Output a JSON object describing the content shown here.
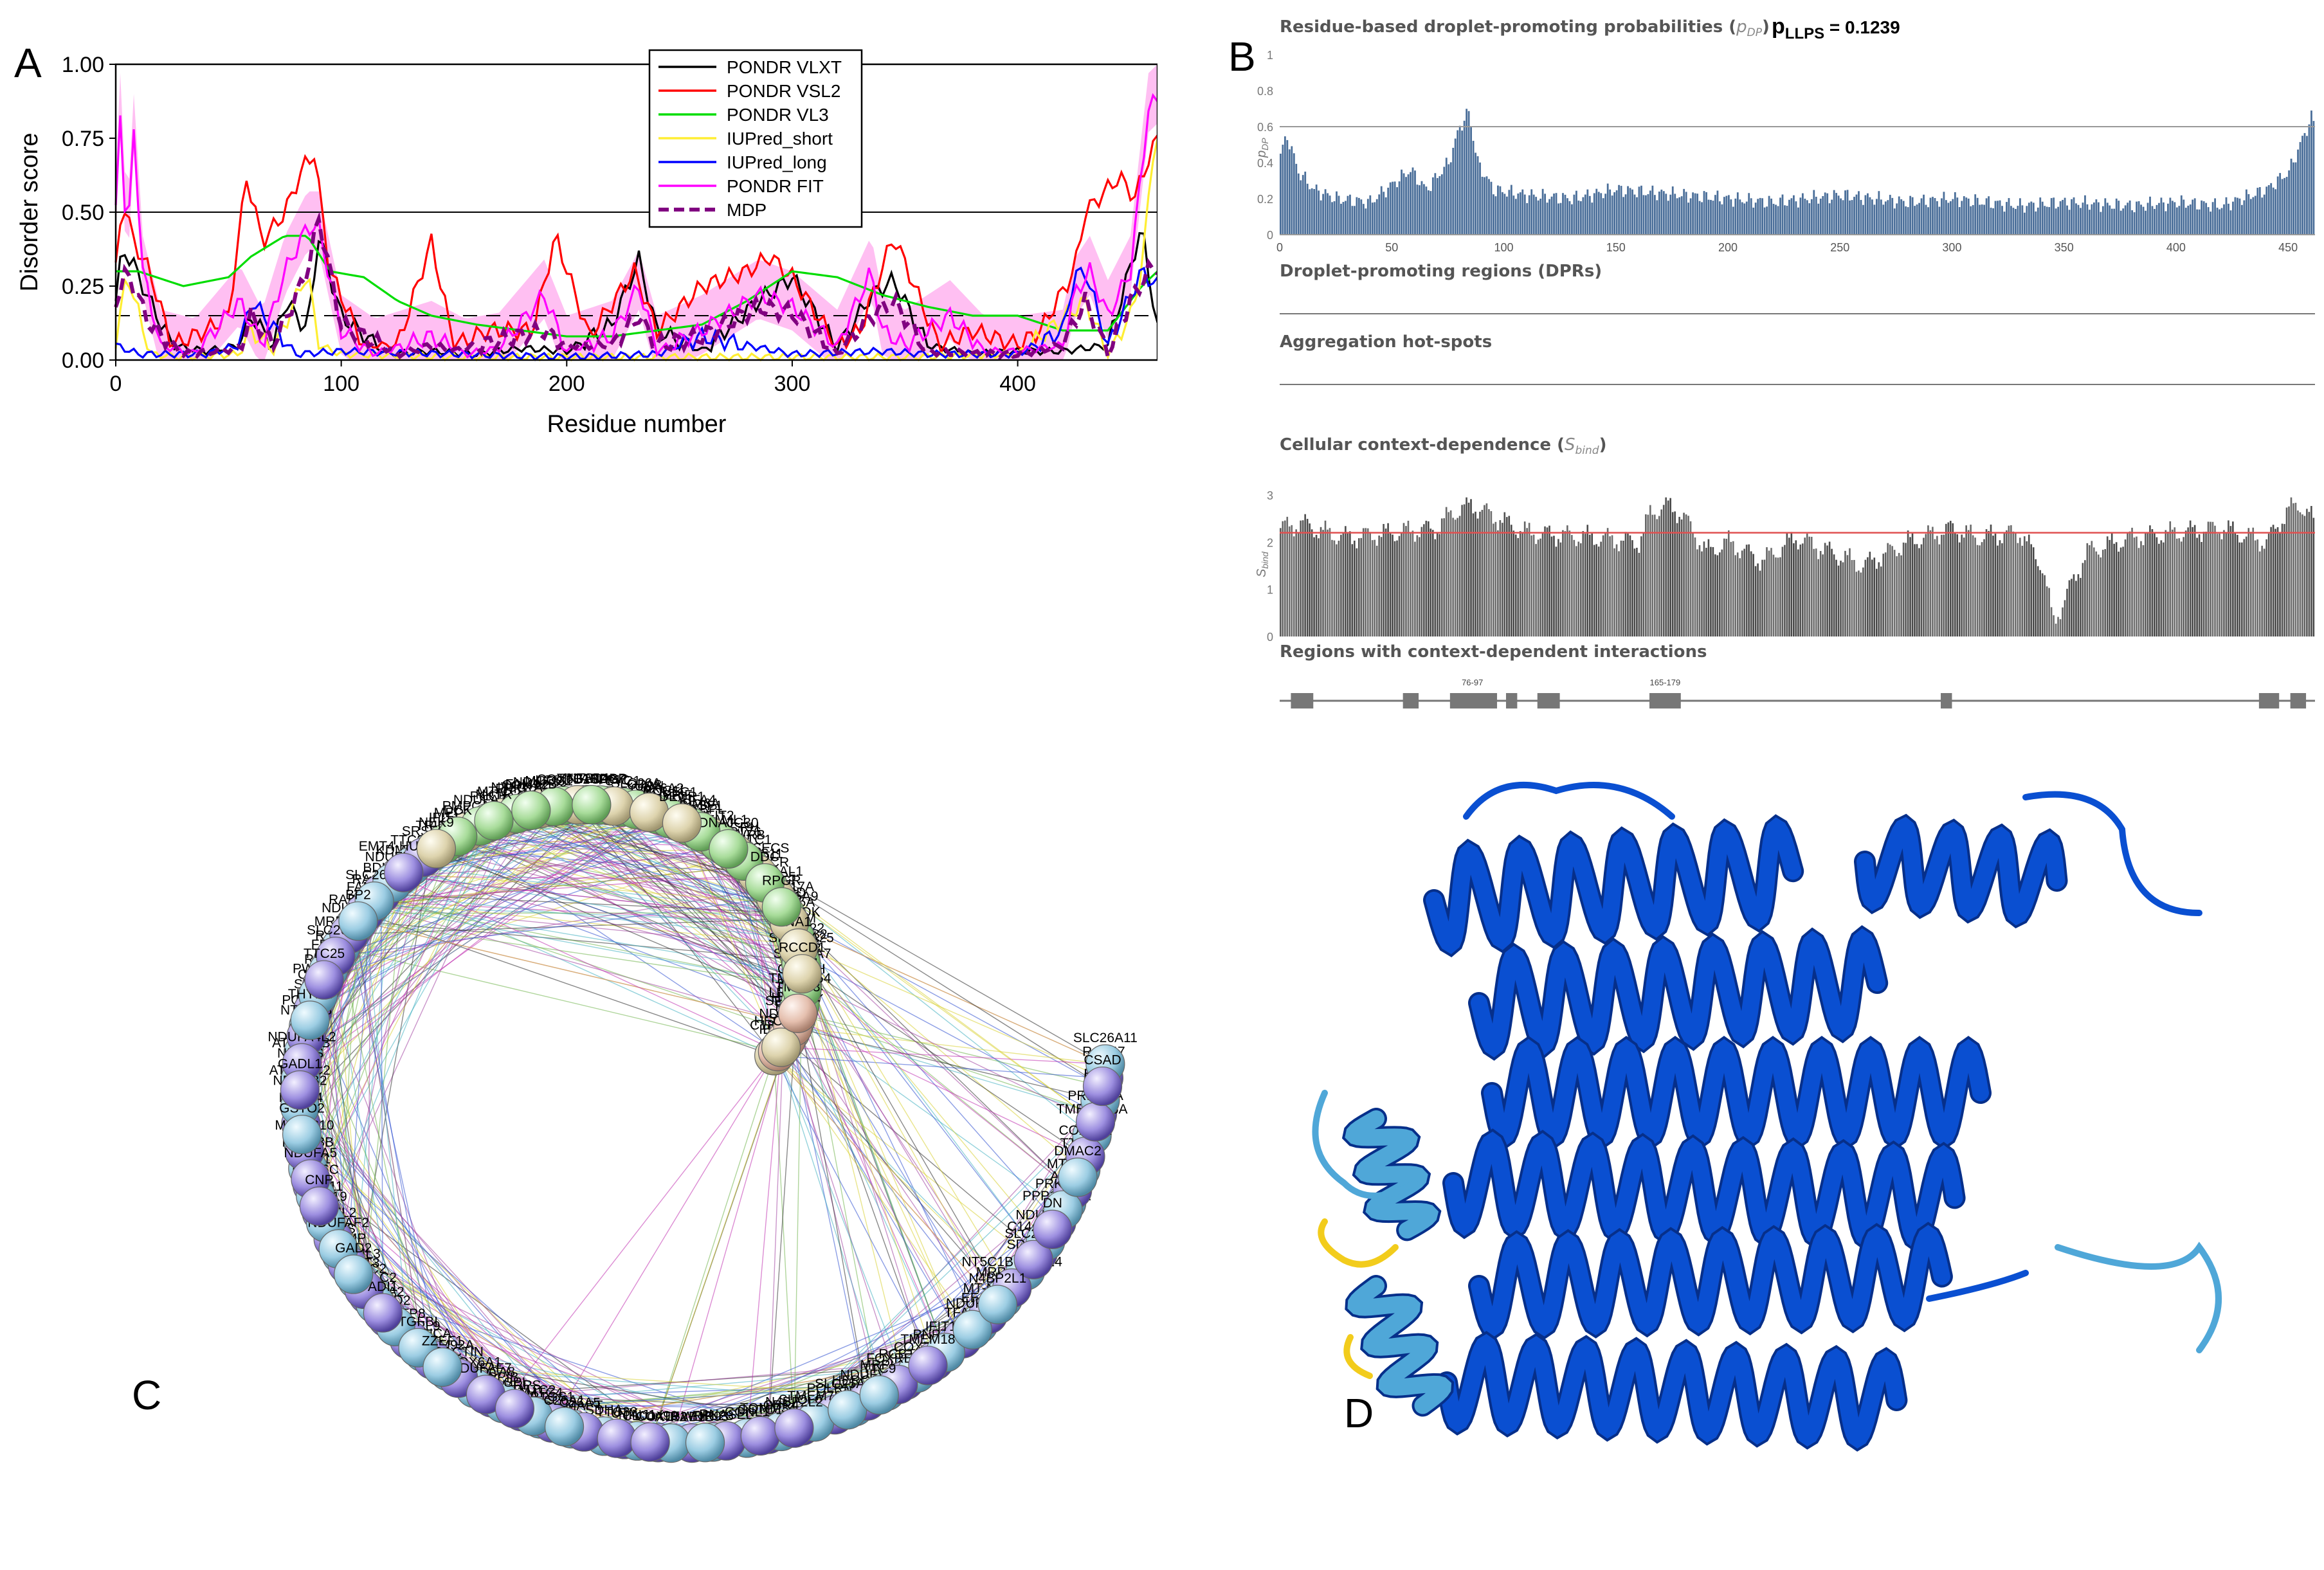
{
  "figure": {
    "panel_labels": {
      "a": "A",
      "b": "B",
      "c": "C",
      "d": "D"
    }
  },
  "panel_a": {
    "ylabel": "Disorder score",
    "xlabel": "Residue number",
    "legend": [
      "PONDR VLXT",
      "PONDR VSL2",
      "PONDR VL3",
      "IUPred_short",
      "IUPred_long",
      "PONDR FIT",
      "MDP"
    ],
    "colors": [
      "#000000",
      "#ff0000",
      "#00dd00",
      "#ffee33",
      "#0000ff",
      "#ff00ff",
      "#800080"
    ],
    "fit_error_color": "#ffaaee"
  },
  "chart_data": [
    {
      "type": "line",
      "panel": "A",
      "xlabel": "Residue number",
      "ylabel": "Disorder score",
      "xlim": [
        0,
        462
      ],
      "ylim": [
        0,
        1
      ],
      "xticks": [
        0,
        100,
        200,
        300,
        400
      ],
      "yticks": [
        "0.00",
        "0.25",
        "0.50",
        "0.75",
        "1.00"
      ],
      "reference_lines": [
        0.5,
        0.15
      ],
      "legend_position": "top-center",
      "series": [
        {
          "name": "PONDR VLXT",
          "x": [
            0,
            3,
            8,
            15,
            25,
            40,
            55,
            60,
            70,
            75,
            85,
            90,
            100,
            120,
            140,
            160,
            180,
            200,
            220,
            232,
            240,
            260,
            285,
            300,
            320,
            335,
            345,
            360,
            380,
            400,
            420,
            440,
            455,
            460,
            462
          ],
          "y": [
            0.2,
            0.38,
            0.32,
            0.2,
            0.05,
            0.03,
            0.05,
            0.15,
            0.05,
            0.2,
            0.1,
            0.42,
            0.15,
            0.02,
            0.03,
            0.02,
            0.04,
            0.03,
            0.12,
            0.34,
            0.1,
            0.03,
            0.2,
            0.28,
            0.04,
            0.22,
            0.27,
            0.05,
            0.02,
            0.03,
            0.03,
            0.05,
            0.45,
            0.2,
            0.1
          ]
        },
        {
          "name": "PONDR VSL2",
          "x": [
            0,
            3,
            8,
            15,
            25,
            40,
            50,
            58,
            65,
            75,
            83,
            88,
            95,
            110,
            125,
            140,
            150,
            165,
            185,
            195,
            210,
            230,
            240,
            260,
            280,
            290,
            300,
            320,
            330,
            345,
            365,
            380,
            400,
            410,
            425,
            430,
            445,
            452,
            458,
            462
          ],
          "y": [
            0.3,
            0.55,
            0.4,
            0.3,
            0.05,
            0.1,
            0.15,
            0.62,
            0.4,
            0.5,
            0.65,
            0.7,
            0.3,
            0.05,
            0.05,
            0.4,
            0.05,
            0.1,
            0.1,
            0.42,
            0.08,
            0.3,
            0.1,
            0.25,
            0.3,
            0.35,
            0.28,
            0.05,
            0.1,
            0.42,
            0.05,
            0.1,
            0.05,
            0.1,
            0.3,
            0.5,
            0.62,
            0.55,
            0.68,
            0.75
          ]
        },
        {
          "name": "PONDR VL3",
          "x": [
            0,
            10,
            30,
            50,
            60,
            75,
            85,
            95,
            110,
            125,
            140,
            160,
            180,
            200,
            220,
            240,
            260,
            280,
            300,
            320,
            340,
            360,
            380,
            400,
            420,
            440,
            455,
            462
          ],
          "y": [
            0.3,
            0.3,
            0.25,
            0.28,
            0.35,
            0.42,
            0.42,
            0.3,
            0.28,
            0.2,
            0.15,
            0.12,
            0.1,
            0.08,
            0.08,
            0.1,
            0.12,
            0.2,
            0.3,
            0.28,
            0.22,
            0.18,
            0.15,
            0.15,
            0.1,
            0.1,
            0.25,
            0.3
          ]
        },
        {
          "name": "IUPred_short",
          "x": [
            0,
            5,
            15,
            30,
            55,
            60,
            70,
            85,
            90,
            100,
            150,
            200,
            250,
            300,
            350,
            400,
            430,
            440,
            450,
            455,
            460,
            462
          ],
          "y": [
            0.05,
            0.3,
            0.02,
            0.01,
            0.02,
            0.1,
            0.03,
            0.3,
            0.05,
            0.02,
            0.01,
            0.01,
            0.01,
            0.01,
            0.01,
            0.02,
            0.2,
            0.02,
            0.15,
            0.3,
            0.7,
            0.75
          ]
        },
        {
          "name": "IUPred_long",
          "x": [
            0,
            10,
            40,
            55,
            60,
            80,
            100,
            150,
            200,
            240,
            260,
            300,
            340,
            360,
            400,
            420,
            425,
            430,
            440,
            455,
            462
          ],
          "y": [
            0.05,
            0.02,
            0.02,
            0.05,
            0.2,
            0.02,
            0.03,
            0.02,
            0.01,
            0.02,
            0.08,
            0.02,
            0.03,
            0.02,
            0.02,
            0.1,
            0.28,
            0.3,
            0.05,
            0.3,
            0.25
          ]
        },
        {
          "name": "PONDR FIT",
          "x": [
            0,
            2,
            5,
            8,
            12,
            20,
            35,
            55,
            65,
            75,
            85,
            90,
            100,
            115,
            140,
            155,
            170,
            190,
            200,
            220,
            232,
            240,
            260,
            285,
            300,
            320,
            335,
            340,
            350,
            370,
            385,
            400,
            420,
            425,
            432,
            440,
            450,
            458,
            462
          ],
          "y": [
            0.5,
            0.85,
            0.35,
            0.78,
            0.3,
            0.05,
            0.02,
            0.2,
            0.05,
            0.3,
            0.45,
            0.45,
            0.1,
            0.02,
            0.08,
            0.02,
            0.04,
            0.22,
            0.03,
            0.08,
            0.25,
            0.03,
            0.1,
            0.22,
            0.18,
            0.05,
            0.3,
            0.1,
            0.05,
            0.15,
            0.03,
            0.03,
            0.05,
            0.22,
            0.3,
            0.15,
            0.3,
            0.85,
            0.88
          ]
        },
        {
          "name": "MDP",
          "x": [
            0,
            5,
            15,
            30,
            55,
            60,
            70,
            85,
            90,
            100,
            125,
            140,
            150,
            190,
            200,
            220,
            232,
            240,
            260,
            285,
            300,
            320,
            335,
            345,
            360,
            380,
            400,
            420,
            430,
            440,
            450,
            458,
            462
          ],
          "y": [
            0.2,
            0.3,
            0.12,
            0.02,
            0.04,
            0.15,
            0.05,
            0.3,
            0.48,
            0.12,
            0.02,
            0.05,
            0.03,
            0.1,
            0.05,
            0.05,
            0.15,
            0.05,
            0.08,
            0.18,
            0.16,
            0.02,
            0.15,
            0.2,
            0.03,
            0.02,
            0.02,
            0.05,
            0.2,
            0.02,
            0.2,
            0.3,
            0.32
          ]
        }
      ]
    },
    {
      "type": "bar",
      "panel": "B-top",
      "title": "Residue-based droplet-promoting probabilities (pDP)",
      "ylabel": "pDP",
      "xlim": [
        0,
        462
      ],
      "ylim": [
        0,
        1
      ],
      "xticks": [
        0,
        50,
        100,
        150,
        200,
        250,
        300,
        350,
        400,
        450
      ],
      "yticks": [
        "0",
        "0.2",
        "0.4",
        "0.6",
        "0.8",
        "1"
      ],
      "threshold": 0.6,
      "profile_x": [
        0,
        3,
        8,
        15,
        25,
        40,
        50,
        58,
        65,
        75,
        80,
        84,
        88,
        95,
        110,
        130,
        150,
        180,
        220,
        250,
        280,
        300,
        330,
        350,
        380,
        400,
        420,
        440,
        450,
        455,
        460,
        462
      ],
      "profile_y": [
        0.45,
        0.55,
        0.35,
        0.25,
        0.2,
        0.18,
        0.28,
        0.36,
        0.25,
        0.4,
        0.6,
        0.68,
        0.4,
        0.25,
        0.22,
        0.2,
        0.25,
        0.22,
        0.18,
        0.22,
        0.18,
        0.2,
        0.16,
        0.18,
        0.16,
        0.18,
        0.16,
        0.25,
        0.35,
        0.5,
        0.65,
        0.6
      ]
    },
    {
      "type": "bar",
      "panel": "B-bottom",
      "title": "Cellular context-dependence (Sbind)",
      "ylabel": "Sbind",
      "xlim": [
        0,
        462
      ],
      "ylim": [
        0,
        3
      ],
      "yticks": [
        "0",
        "1",
        "2",
        "3"
      ],
      "threshold": 2.2,
      "profile_x": [
        0,
        10,
        20,
        30,
        50,
        70,
        76,
        85,
        97,
        110,
        140,
        160,
        165,
        172,
        179,
        190,
        200,
        215,
        230,
        260,
        280,
        300,
        310,
        330,
        340,
        345,
        350,
        360,
        380,
        400,
        420,
        440,
        450,
        455,
        462
      ],
      "profile_y": [
        2.3,
        2.4,
        2.2,
        2.1,
        2.2,
        2.3,
        2.6,
        2.8,
        2.5,
        2.2,
        2.1,
        2.0,
        2.6,
        2.8,
        2.6,
        1.8,
        2.0,
        1.6,
        2.1,
        1.5,
        2.0,
        2.3,
        2.1,
        2.2,
        1.5,
        0.3,
        0.8,
        1.8,
        2.1,
        2.2,
        2.3,
        2.0,
        2.7,
        2.8,
        2.4
      ]
    }
  ],
  "panel_b": {
    "title_main": "Residue-based droplet-promoting probabilities (",
    "title_sym": "p",
    "title_sub": "DP",
    "title_close": ")",
    "llps_prefix": "p",
    "llps_sub": "LLPS",
    "llps_value": " = 0.1239",
    "ylabel_sym": "p",
    "ylabel_sub": "DP",
    "dpr_title": "Droplet-promoting regions (DPRs)",
    "agg_title": "Aggregation hot-spots",
    "ctx_title_main": "Cellular context-dependence (",
    "ctx_sym": "S",
    "ctx_sub": "bind",
    "ctx_close": ")",
    "sbind_ylabel_sym": "S",
    "sbind_ylabel_sub": "bind",
    "regions_title": "Regions with context-dependent interactions",
    "region_labels": [
      "76-97",
      "165-179"
    ],
    "regions": [
      [
        5,
        15
      ],
      [
        55,
        62
      ],
      [
        76,
        97
      ],
      [
        101,
        106
      ],
      [
        115,
        125
      ],
      [
        165,
        179
      ],
      [
        295,
        300
      ],
      [
        437,
        446
      ],
      [
        451,
        458
      ]
    ],
    "bar_color": "#4a6e99",
    "sbind_color": "#555555",
    "threshold_color": "#e05050"
  },
  "panel_c": {
    "nodes": [
      "IBTK",
      "RCC2",
      "RCC1L",
      "RCBTB1",
      "CHST",
      "RCBTB2",
      "TMTC4",
      "PPIG",
      "ALS2",
      "RCC1",
      "KRT76",
      "TOMM34",
      "RAG1",
      "HERC2",
      "RPL9",
      "SPG7",
      "EEA1",
      "ATP6V0B",
      "H6PD",
      "UTY",
      "MED1",
      "MRP",
      "RPS",
      "KDM6A",
      "HERC1",
      "RABL",
      "PPID",
      "CDCA8",
      "MCCC2",
      "C14orf119",
      "AG2",
      "RPS11",
      "RPL23",
      "KDM6B",
      "SOD",
      "PPA2",
      "OPA3",
      "PNPT1",
      "POLR2B",
      "TUFM",
      "SLC26A5",
      "PCCB",
      "TTC19",
      "COX11",
      "MAML1",
      "SUCLG",
      "RAB33A",
      "SGPL1",
      "FAM92A",
      "INTS14",
      "MRPS16",
      "ATP5MC2",
      "ATP5",
      "COX15",
      "TRIR",
      "RAB47",
      "MAML3",
      "PPIF",
      "MRPL20",
      "RPS1",
      "CYCS",
      "MRPS",
      "COX4I2",
      "PPP1R15A",
      "RAB33B",
      "TMTC1",
      "CGNL1",
      "BDH2",
      "PPIA",
      "ATP8",
      "CYC1",
      "TFAM",
      "CYB",
      "COX5A",
      "SDHA",
      "PMPCA",
      "TMEM126A",
      "MAML2",
      "KBPL",
      "POLRMT",
      "MRPL58",
      "GAPDH",
      "COX6A1",
      "COX6B1",
      "SDHB",
      "LYRM4",
      "MECR",
      "RAB1B",
      "TTC24",
      "C18orf32",
      "ELAC2",
      "COX6A2",
      "COX7B",
      "SDHD",
      "TIMM22",
      "PTGS1",
      "MT-CO1",
      "MT-CO3",
      "COX6C",
      "UQCRH",
      "CBR4",
      "FAM2",
      "LRPPRC",
      "SNCA",
      "TARDBP",
      "MT-ND2",
      "NDUFS",
      "TIMM17A",
      "NINJ1",
      "IFIT1",
      "ELP6",
      "TYMP",
      "NDUFA4",
      "NDUFV1",
      "FDX1",
      "SLC26A7",
      "PPIB",
      "NDUFS5",
      "NDUFA11",
      "MICOS10",
      "SEPSECS",
      "RNASEL",
      "NDUFB1",
      "NDUFB6",
      "ISD2",
      "SLC26A",
      "IFIT1B",
      "NT5C1B",
      "DGUOK",
      "MAPT",
      "NDUFA7",
      "COX7A1",
      "RAB19",
      "IFIT2",
      "TMEM70",
      "NDUFC2",
      "TMEM254",
      "CACTIN",
      "TTC13",
      "NT5C1B-RDH14",
      "NDUFB2",
      "NMRAL1",
      "ATP2",
      "SRSF9",
      "SLC26A11",
      "IFIT3",
      "NDUFC1",
      "FOXRED1",
      "PWWP2",
      "SLC25A25",
      "TMTC2",
      "NT5C1A",
      "PRKACB",
      "NDUFA5",
      "BLVRB",
      "GSTO1",
      "SLC26A3",
      "SERGEF",
      "TGFBI",
      "PPIC",
      "NDUFA3",
      "NDUFA4L2",
      "SLC26A9",
      "TTC32",
      "DCK",
      "PRKACA",
      "NDUFAF2",
      "SRSF1",
      "SLC25A23",
      "SLC26A6",
      "CTU1",
      "DUFAF7",
      "LCSIT",
      "SLC26A4",
      "GSTO2",
      "DDC",
      "WDR93",
      "EMT4-HUMAN",
      "HECTD4",
      "ADI1",
      "UCN",
      "TMEM18",
      "THYN1",
      "NA1",
      "C26A1",
      "NKTR",
      "DMAC2",
      "CNP",
      "DNAJC30",
      "N4BP2L2",
      "BP2",
      "TMTC3",
      "ZZEF1",
      "GAD1",
      "N4BP2L1",
      "GADL1",
      "RPGR",
      "C10orf99",
      "NEK9",
      "CSAD",
      "GAD2",
      "DECR1",
      "TTC9",
      "TTC25",
      "RCCD1",
      "SPI",
      "FAM92B",
      "DN"
    ]
  },
  "panel_d": {
    "colors": {
      "high": "#0a4fd1",
      "mid": "#4fa7d8",
      "low": "#f2cc1c"
    }
  }
}
